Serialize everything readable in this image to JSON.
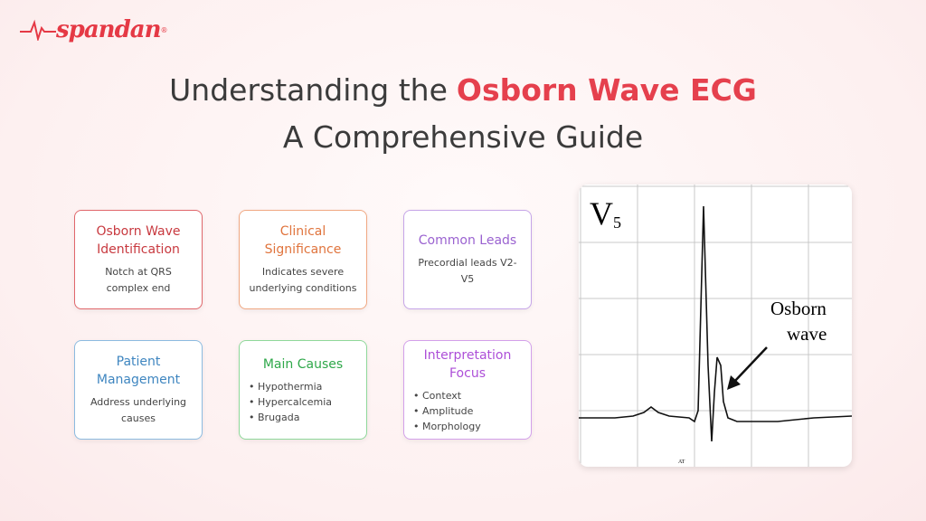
{
  "logo": {
    "text": "spandan",
    "mark": "®"
  },
  "title": {
    "line1_prefix": "Understanding the",
    "line1_highlight": "Osborn Wave ECG",
    "line2": "A Comprehensive Guide"
  },
  "cards": [
    {
      "title": "Osborn Wave Identification",
      "body": "Notch at QRS complex end"
    },
    {
      "title": "Clinical Significance",
      "body": "Indicates severe underlying conditions"
    },
    {
      "title": "Common Leads",
      "body": "Precordial leads V2-V5"
    },
    {
      "title": "Patient Management",
      "body": "Address underlying causes"
    },
    {
      "title": "Main Causes",
      "items": [
        "Hypothermia",
        "Hypercalcemia",
        "Brugada"
      ]
    },
    {
      "title": "Interpretation Focus",
      "items": [
        "Context",
        "Amplitude",
        "Morphology"
      ]
    }
  ],
  "ecg": {
    "lead": "V",
    "lead_sub": "5",
    "label_line1": "Osborn",
    "label_line2": "wave",
    "footer": "AT"
  }
}
